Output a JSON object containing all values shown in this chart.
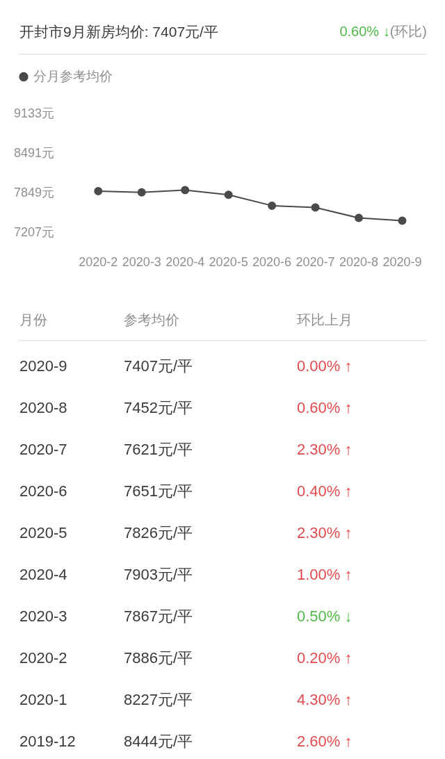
{
  "chart_data": [
    {
      "type": "line",
      "title": "开封市9月新房均价: 7407元/平",
      "annotations": [
        "0.60% ↓",
        "(环比)"
      ],
      "categories": [
        "2020-2",
        "2020-3",
        "2020-4",
        "2020-5",
        "2020-6",
        "2020-7",
        "2020-8",
        "2020-9"
      ],
      "series": [
        {
          "name": "分月参考均价",
          "color": "#4a4a4a",
          "values": [
            7886,
            7867,
            7903,
            7826,
            7651,
            7621,
            7452,
            7407
          ]
        }
      ],
      "ylim": [
        7207,
        9133
      ],
      "yticks": [
        {
          "value": 7207,
          "label": "7207元"
        },
        {
          "value": 7849,
          "label": "7849元"
        },
        {
          "value": 8491,
          "label": "8491元"
        },
        {
          "value": 9133,
          "label": "9133元"
        }
      ],
      "legend": "top left",
      "marker": "circle",
      "grid": false
    },
    {
      "type": "other",
      "annotations": [
        "月份",
        "参考均价",
        "环比上月",
        "2020-9",
        "7407元/平",
        "0.00% ↑",
        "2020-8",
        "7452元/平",
        "0.60% ↑",
        "2020-7",
        "7621元/平",
        "2.30% ↑",
        "2020-6",
        "7651元/平",
        "0.40% ↑",
        "2020-5",
        "7826元/平",
        "2.30% ↑",
        "2020-4",
        "7903元/平",
        "1.00% ↑",
        "2020-3",
        "7867元/平",
        "0.50% ↓",
        "2020-2",
        "7886元/平",
        "0.20% ↑",
        "2020-1",
        "8227元/平",
        "4.30% ↑",
        "2019-12",
        "8444元/平",
        "2.60% ↑"
      ]
    }
  ]
}
